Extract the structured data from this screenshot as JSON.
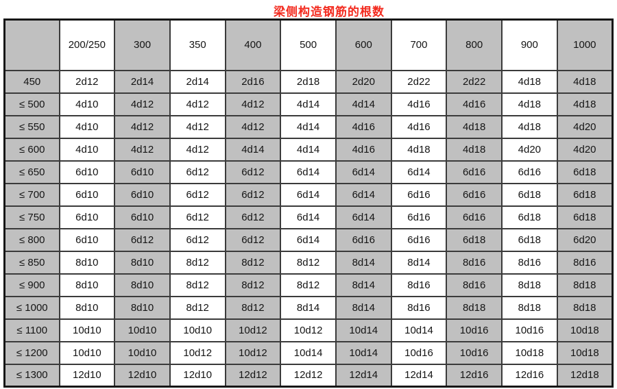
{
  "title": "梁侧构造钢筋的根数",
  "colors": {
    "title": "#f32b1f",
    "cell_gray": "#c0c0c0",
    "cell_white": "#ffffff",
    "border_inner": "#3a3a3a",
    "border_outer": "#161616"
  },
  "chart_data": {
    "type": "table",
    "title": "梁侧构造钢筋的根数",
    "columns": [
      "",
      "200/250",
      "300",
      "350",
      "400",
      "500",
      "600",
      "700",
      "800",
      "900",
      "1000"
    ],
    "rows": [
      {
        "label": "450",
        "values": [
          "2d12",
          "2d14",
          "2d14",
          "2d16",
          "2d18",
          "2d20",
          "2d22",
          "2d22",
          "4d18",
          "4d18"
        ]
      },
      {
        "label": "≤ 500",
        "values": [
          "4d10",
          "4d12",
          "4d12",
          "4d12",
          "4d14",
          "4d14",
          "4d16",
          "4d16",
          "4d18",
          "4d18"
        ]
      },
      {
        "label": "≤ 550",
        "values": [
          "4d10",
          "4d12",
          "4d12",
          "4d12",
          "4d14",
          "4d16",
          "4d16",
          "4d18",
          "4d18",
          "4d20"
        ]
      },
      {
        "label": "≤ 600",
        "values": [
          "4d10",
          "4d12",
          "4d12",
          "4d14",
          "4d14",
          "4d16",
          "4d18",
          "4d18",
          "4d20",
          "4d20"
        ]
      },
      {
        "label": "≤ 650",
        "values": [
          "6d10",
          "6d10",
          "6d12",
          "6d12",
          "6d14",
          "6d14",
          "6d14",
          "6d16",
          "6d16",
          "6d18"
        ]
      },
      {
        "label": "≤ 700",
        "values": [
          "6d10",
          "6d10",
          "6d12",
          "6d12",
          "6d14",
          "6d14",
          "6d16",
          "6d16",
          "6d18",
          "6d18"
        ]
      },
      {
        "label": "≤ 750",
        "values": [
          "6d10",
          "6d10",
          "6d12",
          "6d12",
          "6d14",
          "6d14",
          "6d16",
          "6d16",
          "6d18",
          "6d18"
        ]
      },
      {
        "label": "≤ 800",
        "values": [
          "6d10",
          "6d12",
          "6d12",
          "6d12",
          "6d14",
          "6d16",
          "6d16",
          "6d18",
          "6d18",
          "6d20"
        ]
      },
      {
        "label": "≤ 850",
        "values": [
          "8d10",
          "8d10",
          "8d12",
          "8d12",
          "8d12",
          "8d14",
          "8d14",
          "8d16",
          "8d16",
          "8d16"
        ]
      },
      {
        "label": "≤ 900",
        "values": [
          "8d10",
          "8d10",
          "8d12",
          "8d12",
          "8d12",
          "8d14",
          "8d16",
          "8d16",
          "8d18",
          "8d18"
        ]
      },
      {
        "label": "≤ 1000",
        "values": [
          "8d10",
          "8d10",
          "8d12",
          "8d12",
          "8d14",
          "8d14",
          "8d16",
          "8d18",
          "8d18",
          "8d18"
        ]
      },
      {
        "label": "≤ 1100",
        "values": [
          "10d10",
          "10d10",
          "10d10",
          "10d12",
          "10d12",
          "10d14",
          "10d14",
          "10d16",
          "10d16",
          "10d18"
        ]
      },
      {
        "label": "≤ 1200",
        "values": [
          "10d10",
          "10d10",
          "10d12",
          "10d12",
          "10d14",
          "10d14",
          "10d16",
          "10d16",
          "10d18",
          "10d18"
        ]
      },
      {
        "label": "≤ 1300",
        "values": [
          "12d10",
          "12d10",
          "12d10",
          "12d12",
          "12d12",
          "12d14",
          "12d14",
          "12d16",
          "12d16",
          "12d18"
        ]
      }
    ]
  }
}
